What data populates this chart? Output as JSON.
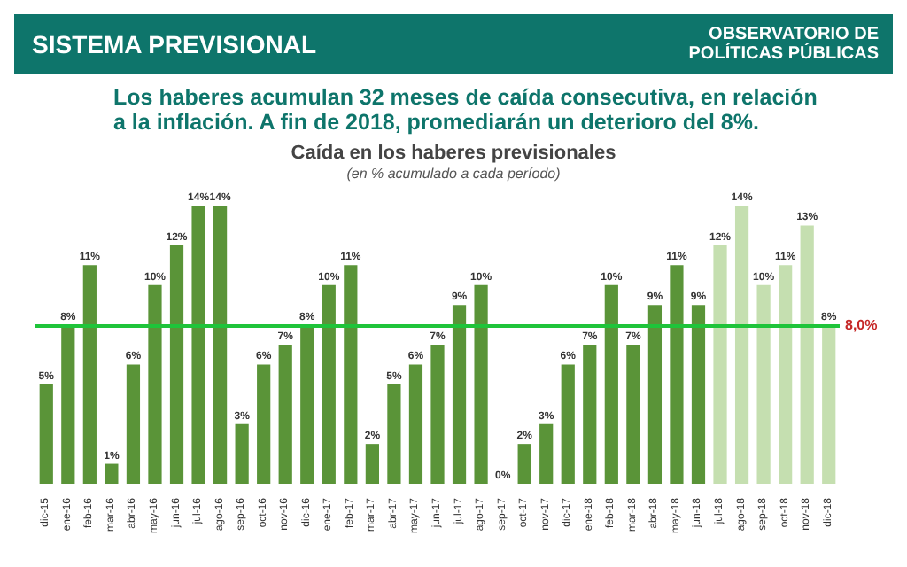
{
  "chart_data": {
    "type": "bar",
    "title": "Caída en los haberes previsionales",
    "subtitle": "(en % acumulado a cada período)",
    "annotations": [
      "SISTEMA PREVISIONAL",
      "OBSERVATORIO DE POLÍTICAS PÚBLICAS",
      "Los haberes acumulan 32 meses de caída consecutiva, en relación a la inflación. A fin de 2018, promediarán un deterioro del 8%."
    ],
    "categories": [
      "dic-15",
      "ene-16",
      "feb-16",
      "mar-16",
      "abr-16",
      "may-16",
      "jun-16",
      "jul-16",
      "ago-16",
      "sep-16",
      "oct-16",
      "nov-16",
      "dic-16",
      "ene-17",
      "feb-17",
      "mar-17",
      "abr-17",
      "may-17",
      "jun-17",
      "jul-17",
      "ago-17",
      "sep-17",
      "oct-17",
      "nov-17",
      "dic-17",
      "ene-18",
      "feb-18",
      "mar-18",
      "abr-18",
      "may-18",
      "jun-18",
      "jul-18",
      "ago-18",
      "sep-18",
      "oct-18",
      "nov-18",
      "dic-18"
    ],
    "values": [
      5,
      8,
      11,
      1,
      6,
      10,
      12,
      14,
      14,
      3,
      6,
      7,
      8,
      10,
      11,
      2,
      5,
      6,
      7,
      9,
      10,
      0,
      2,
      3,
      6,
      7,
      10,
      7,
      9,
      11,
      9,
      12,
      14,
      10,
      11,
      13,
      8
    ],
    "value_labels": [
      "5%",
      "8%",
      "11%",
      "1%",
      "6%",
      "10%",
      "12%",
      "14%",
      "14%",
      "3%",
      "6%",
      "7%",
      "8%",
      "10%",
      "11%",
      "2%",
      "5%",
      "6%",
      "7%",
      "9%",
      "10%",
      "0%",
      "2%",
      "3%",
      "6%",
      "7%",
      "10%",
      "7%",
      "9%",
      "11%",
      "9%",
      "12%",
      "14%",
      "10%",
      "11%",
      "13%",
      "8%"
    ],
    "colors": [
      "#5a9438",
      "#5a9438",
      "#5a9438",
      "#5a9438",
      "#5a9438",
      "#5a9438",
      "#5a9438",
      "#5a9438",
      "#5a9438",
      "#5a9438",
      "#5a9438",
      "#5a9438",
      "#5a9438",
      "#5a9438",
      "#5a9438",
      "#5a9438",
      "#5a9438",
      "#5a9438",
      "#5a9438",
      "#5a9438",
      "#5a9438",
      "#5a9438",
      "#5a9438",
      "#5a9438",
      "#5a9438",
      "#5a9438",
      "#5a9438",
      "#5a9438",
      "#5a9438",
      "#5a9438",
      "#5a9438",
      "#c5dfb0",
      "#c5dfb0",
      "#c5dfb0",
      "#c5dfb0",
      "#c5dfb0",
      "#c5dfb0"
    ],
    "ref_lines": [
      {
        "axis": "y",
        "value": 8,
        "label": "8,0%",
        "color": "#1fc43a"
      }
    ]
  }
}
